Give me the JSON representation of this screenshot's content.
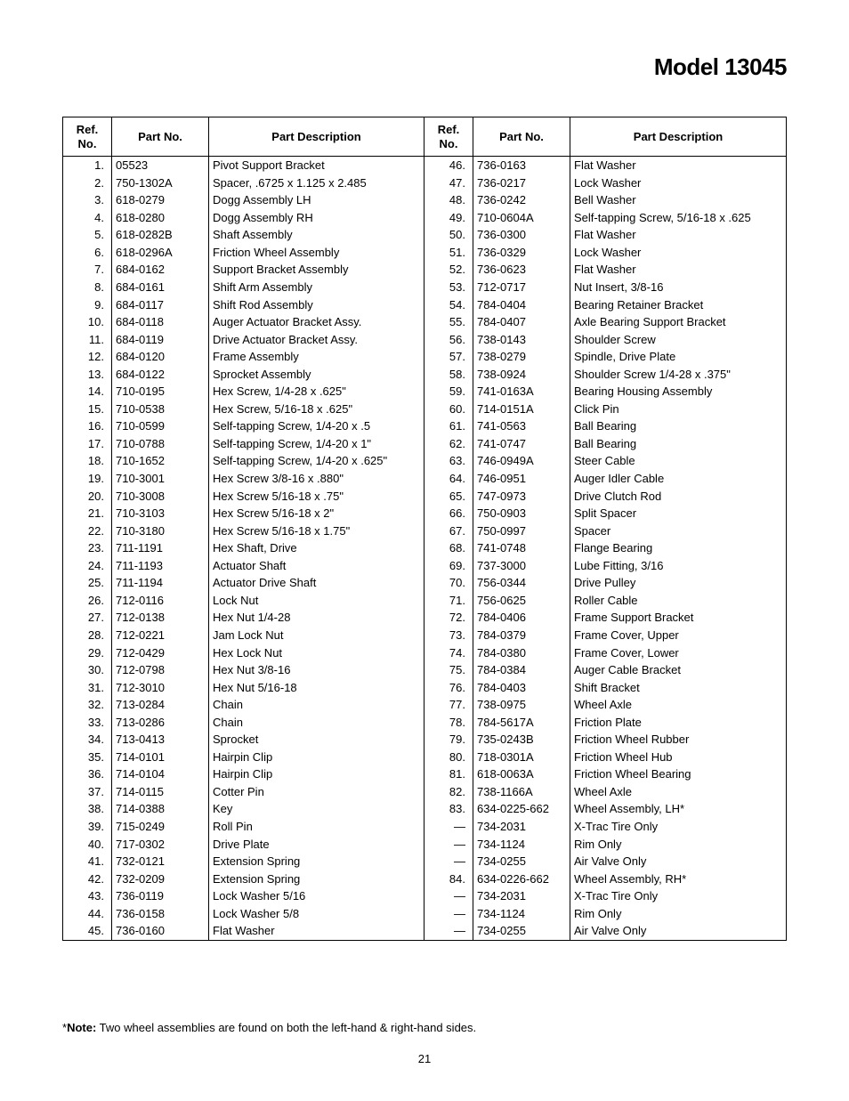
{
  "title": "Model 13045",
  "headers": {
    "ref": "Ref.\nNo.",
    "pn": "Part No.",
    "pd": "Part Description"
  },
  "left_rows": [
    {
      "ref": "1.",
      "pn": "05523",
      "pd": "Pivot Support Bracket"
    },
    {
      "ref": "2.",
      "pn": "750-1302A",
      "pd": "Spacer, .6725 x 1.125 x 2.485"
    },
    {
      "ref": "3.",
      "pn": "618-0279",
      "pd": "Dogg Assembly LH"
    },
    {
      "ref": "4.",
      "pn": "618-0280",
      "pd": "Dogg Assembly RH"
    },
    {
      "ref": "5.",
      "pn": "618-0282B",
      "pd": "Shaft Assembly"
    },
    {
      "ref": "6.",
      "pn": "618-0296A",
      "pd": "Friction Wheel Assembly"
    },
    {
      "ref": "7.",
      "pn": "684-0162",
      "pd": "Support Bracket Assembly"
    },
    {
      "ref": "8.",
      "pn": "684-0161",
      "pd": "Shift Arm Assembly"
    },
    {
      "ref": "9.",
      "pn": "684-0117",
      "pd": "Shift Rod Assembly"
    },
    {
      "ref": "10.",
      "pn": "684-0118",
      "pd": "Auger Actuator Bracket Assy."
    },
    {
      "ref": "11.",
      "pn": "684-0119",
      "pd": "Drive Actuator Bracket Assy."
    },
    {
      "ref": "12.",
      "pn": "684-0120",
      "pd": "Frame Assembly"
    },
    {
      "ref": "13.",
      "pn": "684-0122",
      "pd": "Sprocket Assembly"
    },
    {
      "ref": "14.",
      "pn": "710-0195",
      "pd": "Hex Screw, 1/4-28 x .625\""
    },
    {
      "ref": "15.",
      "pn": "710-0538",
      "pd": "Hex Screw, 5/16-18 x .625\""
    },
    {
      "ref": "16.",
      "pn": "710-0599",
      "pd": "Self-tapping Screw, 1/4-20 x .5"
    },
    {
      "ref": "17.",
      "pn": "710-0788",
      "pd": "Self-tapping Screw, 1/4-20 x 1\""
    },
    {
      "ref": "18.",
      "pn": "710-1652",
      "pd": "Self-tapping Screw, 1/4-20 x .625\""
    },
    {
      "ref": "19.",
      "pn": "710-3001",
      "pd": "Hex Screw 3/8-16 x .880\""
    },
    {
      "ref": "20.",
      "pn": "710-3008",
      "pd": "Hex Screw 5/16-18 x .75\""
    },
    {
      "ref": "21.",
      "pn": "710-3103",
      "pd": "Hex Screw 5/16-18 x 2\""
    },
    {
      "ref": "22.",
      "pn": "710-3180",
      "pd": "Hex Screw 5/16-18 x 1.75\""
    },
    {
      "ref": "23.",
      "pn": "711-1191",
      "pd": "Hex Shaft, Drive"
    },
    {
      "ref": "24.",
      "pn": "711-1193",
      "pd": "Actuator Shaft"
    },
    {
      "ref": "25.",
      "pn": "711-1194",
      "pd": "Actuator Drive Shaft"
    },
    {
      "ref": "26.",
      "pn": "712-0116",
      "pd": "Lock Nut"
    },
    {
      "ref": "27.",
      "pn": "712-0138",
      "pd": "Hex Nut 1/4-28"
    },
    {
      "ref": "28.",
      "pn": "712-0221",
      "pd": "Jam Lock Nut"
    },
    {
      "ref": "29.",
      "pn": "712-0429",
      "pd": "Hex Lock Nut"
    },
    {
      "ref": "30.",
      "pn": "712-0798",
      "pd": "Hex Nut 3/8-16"
    },
    {
      "ref": "31.",
      "pn": "712-3010",
      "pd": "Hex Nut 5/16-18"
    },
    {
      "ref": "32.",
      "pn": "713-0284",
      "pd": "Chain"
    },
    {
      "ref": "33.",
      "pn": "713-0286",
      "pd": "Chain"
    },
    {
      "ref": "34.",
      "pn": "713-0413",
      "pd": "Sprocket"
    },
    {
      "ref": "35.",
      "pn": "714-0101",
      "pd": "Hairpin Clip"
    },
    {
      "ref": "36.",
      "pn": "714-0104",
      "pd": "Hairpin Clip"
    },
    {
      "ref": "37.",
      "pn": "714-0115",
      "pd": "Cotter Pin"
    },
    {
      "ref": "38.",
      "pn": "714-0388",
      "pd": "Key"
    },
    {
      "ref": "39.",
      "pn": "715-0249",
      "pd": "Roll Pin"
    },
    {
      "ref": "40.",
      "pn": "717-0302",
      "pd": "Drive Plate"
    },
    {
      "ref": "41.",
      "pn": "732-0121",
      "pd": "Extension Spring"
    },
    {
      "ref": "42.",
      "pn": "732-0209",
      "pd": "Extension Spring"
    },
    {
      "ref": "43.",
      "pn": "736-0119",
      "pd": "Lock Washer 5/16"
    },
    {
      "ref": "44.",
      "pn": "736-0158",
      "pd": "Lock Washer 5/8"
    },
    {
      "ref": "45.",
      "pn": "736-0160",
      "pd": "Flat Washer"
    }
  ],
  "right_rows": [
    {
      "ref": "46.",
      "pn": "736-0163",
      "pd": "Flat Washer"
    },
    {
      "ref": "47.",
      "pn": "736-0217",
      "pd": "Lock Washer"
    },
    {
      "ref": "48.",
      "pn": "736-0242",
      "pd": "Bell Washer"
    },
    {
      "ref": "49.",
      "pn": "710-0604A",
      "pd": "Self-tapping Screw, 5/16-18 x .625"
    },
    {
      "ref": "50.",
      "pn": "736-0300",
      "pd": "Flat Washer"
    },
    {
      "ref": "51.",
      "pn": "736-0329",
      "pd": "Lock Washer"
    },
    {
      "ref": "52.",
      "pn": "736-0623",
      "pd": "Flat Washer"
    },
    {
      "ref": "53.",
      "pn": "712-0717",
      "pd": "Nut Insert, 3/8-16"
    },
    {
      "ref": "54.",
      "pn": "784-0404",
      "pd": "Bearing Retainer Bracket"
    },
    {
      "ref": "55.",
      "pn": "784-0407",
      "pd": "Axle Bearing Support Bracket"
    },
    {
      "ref": "56.",
      "pn": "738-0143",
      "pd": "Shoulder Screw"
    },
    {
      "ref": "57.",
      "pn": "738-0279",
      "pd": "Spindle, Drive Plate"
    },
    {
      "ref": "58.",
      "pn": "738-0924",
      "pd": "Shoulder Screw 1/4-28 x .375\""
    },
    {
      "ref": "59.",
      "pn": "741-0163A",
      "pd": "Bearing Housing Assembly"
    },
    {
      "ref": "60.",
      "pn": "714-0151A",
      "pd": "Click Pin"
    },
    {
      "ref": "61.",
      "pn": "741-0563",
      "pd": "Ball Bearing"
    },
    {
      "ref": "62.",
      "pn": "741-0747",
      "pd": "Ball Bearing"
    },
    {
      "ref": "63.",
      "pn": "746-0949A",
      "pd": "Steer Cable"
    },
    {
      "ref": "64.",
      "pn": "746-0951",
      "pd": "Auger Idler Cable"
    },
    {
      "ref": "65.",
      "pn": "747-0973",
      "pd": "Drive Clutch Rod"
    },
    {
      "ref": "66.",
      "pn": "750-0903",
      "pd": "Split Spacer"
    },
    {
      "ref": "67.",
      "pn": "750-0997",
      "pd": "Spacer"
    },
    {
      "ref": "68.",
      "pn": "741-0748",
      "pd": "Flange Bearing"
    },
    {
      "ref": "69.",
      "pn": "737-3000",
      "pd": "Lube Fitting, 3/16"
    },
    {
      "ref": "70.",
      "pn": "756-0344",
      "pd": "Drive Pulley"
    },
    {
      "ref": "71.",
      "pn": "756-0625",
      "pd": "Roller Cable"
    },
    {
      "ref": "72.",
      "pn": "784-0406",
      "pd": "Frame Support Bracket"
    },
    {
      "ref": "73.",
      "pn": "784-0379",
      "pd": "Frame Cover, Upper"
    },
    {
      "ref": "74.",
      "pn": "784-0380",
      "pd": "Frame Cover, Lower"
    },
    {
      "ref": "75.",
      "pn": "784-0384",
      "pd": "Auger Cable Bracket"
    },
    {
      "ref": "76.",
      "pn": "784-0403",
      "pd": "Shift Bracket"
    },
    {
      "ref": "77.",
      "pn": "738-0975",
      "pd": "Wheel Axle"
    },
    {
      "ref": "78.",
      "pn": "784-5617A",
      "pd": "Friction Plate"
    },
    {
      "ref": "79.",
      "pn": "735-0243B",
      "pd": "Friction Wheel Rubber"
    },
    {
      "ref": "80.",
      "pn": "718-0301A",
      "pd": "Friction Wheel Hub"
    },
    {
      "ref": "81.",
      "pn": "618-0063A",
      "pd": "Friction Wheel Bearing"
    },
    {
      "ref": "82.",
      "pn": "738-1166A",
      "pd": "Wheel Axle"
    },
    {
      "ref": "83.",
      "pn": "634-0225-662",
      "pd": "Wheel Assembly, LH*"
    },
    {
      "ref": "—",
      "pn": "734-2031",
      "pd": "X-Trac Tire Only"
    },
    {
      "ref": "—",
      "pn": "734-1124",
      "pd": "Rim Only"
    },
    {
      "ref": "—",
      "pn": "734-0255",
      "pd": "Air Valve Only"
    },
    {
      "ref": "84.",
      "pn": "634-0226-662",
      "pd": "Wheel Assembly, RH*"
    },
    {
      "ref": "—",
      "pn": "734-2031",
      "pd": "X-Trac Tire Only"
    },
    {
      "ref": "—",
      "pn": "734-1124",
      "pd": "Rim Only"
    },
    {
      "ref": "—",
      "pn": "734-0255",
      "pd": "Air Valve Only"
    }
  ],
  "note_prefix": "*",
  "note_label": "Note:",
  "note_text": " Two wheel assemblies are found on both the left-hand & right-hand sides.",
  "page_number": "21"
}
